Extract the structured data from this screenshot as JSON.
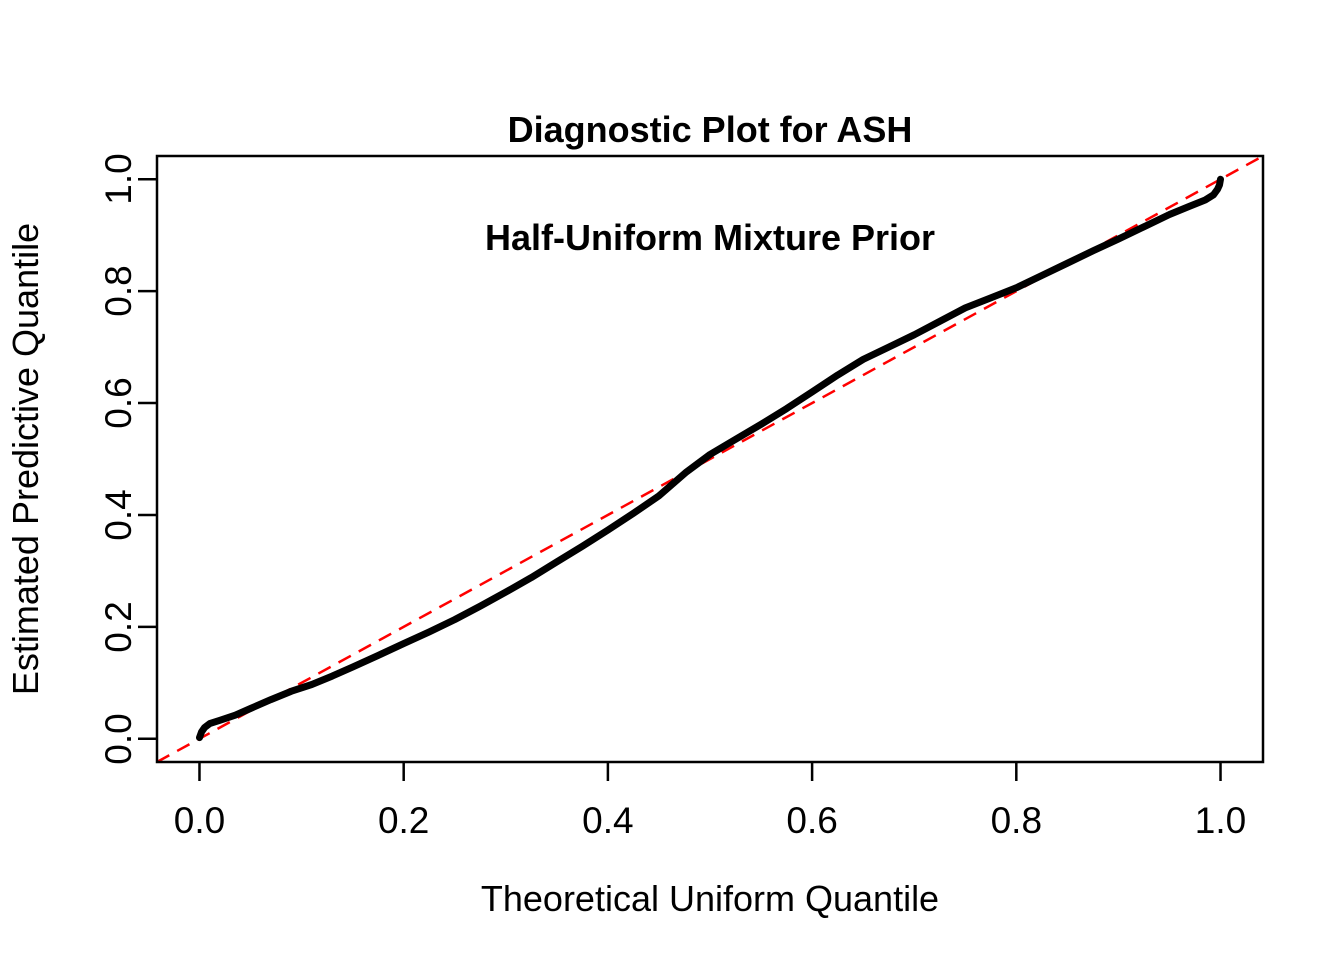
{
  "chart_data": {
    "type": "scatter",
    "title_lines": [
      "Diagnostic Plot for ASH",
      "Half-Uniform Mixture Prior"
    ],
    "xlabel": "Theoretical Uniform Quantile",
    "ylabel": "Estimated Predictive Quantile",
    "xlim": [
      0,
      1
    ],
    "ylim": [
      0,
      1
    ],
    "axis_padding_fraction": 0.0416,
    "x_ticks": [
      0.0,
      0.2,
      0.4,
      0.6,
      0.8,
      1.0
    ],
    "y_ticks": [
      0.0,
      0.2,
      0.4,
      0.6,
      0.8,
      1.0
    ],
    "tick_decimals": 1,
    "grid": false,
    "legend": "none",
    "colors": {
      "background": "#FFFFFF",
      "frame": "#000000",
      "curve": "#000000",
      "reference_line": "#FF0000"
    },
    "series": [
      {
        "name": "estimated-predictive-quantiles",
        "style": "thick-point-curve",
        "color": "#000000",
        "points": [
          [
            0.0,
            0.002
          ],
          [
            0.002,
            0.012
          ],
          [
            0.005,
            0.02
          ],
          [
            0.01,
            0.027
          ],
          [
            0.02,
            0.033
          ],
          [
            0.035,
            0.042
          ],
          [
            0.05,
            0.054
          ],
          [
            0.07,
            0.07
          ],
          [
            0.09,
            0.085
          ],
          [
            0.11,
            0.097
          ],
          [
            0.13,
            0.112
          ],
          [
            0.15,
            0.128
          ],
          [
            0.175,
            0.149
          ],
          [
            0.2,
            0.17
          ],
          [
            0.225,
            0.191
          ],
          [
            0.25,
            0.213
          ],
          [
            0.275,
            0.237
          ],
          [
            0.3,
            0.262
          ],
          [
            0.325,
            0.288
          ],
          [
            0.35,
            0.316
          ],
          [
            0.375,
            0.344
          ],
          [
            0.4,
            0.373
          ],
          [
            0.425,
            0.403
          ],
          [
            0.45,
            0.434
          ],
          [
            0.477,
            0.477
          ],
          [
            0.5,
            0.508
          ],
          [
            0.525,
            0.535
          ],
          [
            0.55,
            0.562
          ],
          [
            0.575,
            0.59
          ],
          [
            0.6,
            0.62
          ],
          [
            0.625,
            0.65
          ],
          [
            0.65,
            0.678
          ],
          [
            0.675,
            0.7
          ],
          [
            0.7,
            0.722
          ],
          [
            0.725,
            0.746
          ],
          [
            0.75,
            0.77
          ],
          [
            0.775,
            0.788
          ],
          [
            0.8,
            0.806
          ],
          [
            0.825,
            0.828
          ],
          [
            0.85,
            0.85
          ],
          [
            0.875,
            0.872
          ],
          [
            0.9,
            0.893
          ],
          [
            0.925,
            0.915
          ],
          [
            0.95,
            0.937
          ],
          [
            0.97,
            0.952
          ],
          [
            0.985,
            0.963
          ],
          [
            0.993,
            0.972
          ],
          [
            0.997,
            0.982
          ],
          [
            0.999,
            0.99
          ],
          [
            1.0,
            1.0
          ]
        ]
      }
    ],
    "reference_line": {
      "name": "identity-diagonal",
      "from": [
        0,
        0
      ],
      "to": [
        1,
        1
      ],
      "style": "dashed",
      "color": "#FF0000"
    }
  }
}
